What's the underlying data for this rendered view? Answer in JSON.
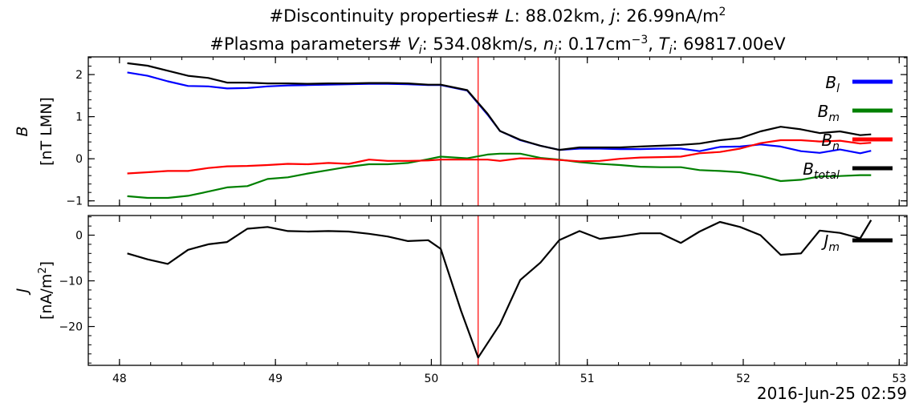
{
  "title": {
    "line1_prefix": "#Discontinuity properties# ",
    "line1_L_label": "L",
    "line1_L_value": ": 88.02km, ",
    "line1_j_label": "j",
    "line1_j_value": ": 26.99nA/m",
    "line1_j_sup": "2",
    "line2_prefix": "#Plasma parameters# ",
    "line2_V_label": "V",
    "line2_V_sub": "i",
    "line2_V_value": ": 534.08km/s, ",
    "line2_n_label": "n",
    "line2_n_sub": "i",
    "line2_n_value": ": 0.17cm",
    "line2_n_sup": "−3",
    "line2_sep": ", ",
    "line2_T_label": "T",
    "line2_T_sub": "i",
    "line2_T_value": ": 69817.00eV"
  },
  "footer": {
    "timestamp": "2016-Jun-25 02:59"
  },
  "colors": {
    "Bl": "#0000ff",
    "Bm": "#008000",
    "Bn": "#ff0000",
    "Btotal": "#000000",
    "J": "#000000",
    "center_line": "#ff0000",
    "boundary_line": "#000000"
  },
  "chart_data": [
    {
      "type": "line",
      "ylabel_sym": "B",
      "ylabel_unit": "[nT LMN]",
      "xlim": [
        47.8,
        53.05
      ],
      "ylim": [
        -1.12,
        2.42
      ],
      "x_ticks": [
        48,
        49,
        50,
        51,
        52,
        53
      ],
      "x_tick_labels": [
        "",
        "",
        "",
        "",
        "",
        ""
      ],
      "y_ticks": [
        -1,
        0,
        1,
        2
      ],
      "y_tick_labels": [
        "−1",
        "0",
        "1",
        "2"
      ],
      "vlines": [
        50.06,
        50.3,
        50.82
      ],
      "legend_position": "upper-right",
      "x": [
        48.05,
        48.18,
        48.31,
        48.44,
        48.57,
        48.69,
        48.82,
        48.95,
        49.08,
        49.21,
        49.34,
        49.47,
        49.6,
        49.72,
        49.85,
        49.98,
        50.06,
        50.23,
        50.36,
        50.44,
        50.57,
        50.7,
        50.82,
        50.95,
        51.08,
        51.21,
        51.34,
        51.47,
        51.6,
        51.72,
        51.85,
        51.98,
        52.11,
        52.24,
        52.37,
        52.49,
        52.62,
        52.75,
        52.82
      ],
      "series": [
        {
          "name": "B",
          "sub": "l",
          "color_key": "Bl",
          "values": [
            2.05,
            1.97,
            1.84,
            1.73,
            1.72,
            1.67,
            1.68,
            1.72,
            1.74,
            1.75,
            1.76,
            1.77,
            1.78,
            1.78,
            1.77,
            1.75,
            1.75,
            1.62,
            1.05,
            0.66,
            0.44,
            0.31,
            0.21,
            0.24,
            0.24,
            0.23,
            0.23,
            0.24,
            0.24,
            0.18,
            0.28,
            0.29,
            0.34,
            0.29,
            0.18,
            0.14,
            0.22,
            0.13,
            0.19
          ]
        },
        {
          "name": "B",
          "sub": "m",
          "color_key": "Bm",
          "values": [
            -0.89,
            -0.93,
            -0.93,
            -0.88,
            -0.78,
            -0.68,
            -0.65,
            -0.48,
            -0.44,
            -0.35,
            -0.27,
            -0.19,
            -0.13,
            -0.13,
            -0.1,
            -0.01,
            0.05,
            0.01,
            0.1,
            0.12,
            0.12,
            0.02,
            -0.02,
            -0.08,
            -0.12,
            -0.15,
            -0.19,
            -0.2,
            -0.2,
            -0.27,
            -0.29,
            -0.32,
            -0.41,
            -0.53,
            -0.5,
            -0.42,
            -0.41,
            -0.39,
            -0.39
          ]
        },
        {
          "name": "B",
          "sub": "n",
          "color_key": "Bn",
          "values": [
            -0.35,
            -0.32,
            -0.29,
            -0.29,
            -0.22,
            -0.18,
            -0.17,
            -0.15,
            -0.12,
            -0.13,
            -0.1,
            -0.12,
            -0.02,
            -0.05,
            -0.05,
            -0.04,
            -0.02,
            -0.02,
            -0.02,
            -0.05,
            0.01,
            0.0,
            -0.03,
            -0.06,
            -0.05,
            0.0,
            0.03,
            0.04,
            0.05,
            0.13,
            0.16,
            0.24,
            0.37,
            0.44,
            0.44,
            0.41,
            0.43,
            0.36,
            0.38
          ]
        },
        {
          "name": "B",
          "sub": "total",
          "color_key": "Btotal",
          "values": [
            2.27,
            2.21,
            2.09,
            1.97,
            1.92,
            1.81,
            1.81,
            1.79,
            1.79,
            1.78,
            1.79,
            1.79,
            1.8,
            1.8,
            1.79,
            1.76,
            1.76,
            1.63,
            1.07,
            0.66,
            0.45,
            0.31,
            0.21,
            0.27,
            0.27,
            0.27,
            0.29,
            0.31,
            0.33,
            0.36,
            0.44,
            0.49,
            0.65,
            0.76,
            0.7,
            0.61,
            0.65,
            0.56,
            0.58
          ]
        }
      ]
    },
    {
      "type": "line",
      "ylabel_sym": "J",
      "ylabel_unit_prefix": "[nA/m",
      "ylabel_unit_sup": "2",
      "ylabel_unit_suffix": "]",
      "xlim": [
        47.8,
        53.05
      ],
      "ylim": [
        -28.5,
        4.3
      ],
      "x_ticks": [
        48,
        49,
        50,
        51,
        52,
        53
      ],
      "x_tick_labels": [
        "48",
        "49",
        "50",
        "51",
        "52",
        "53"
      ],
      "y_ticks": [
        -20,
        -10,
        0
      ],
      "y_tick_labels": [
        "−20",
        "−10",
        "0"
      ],
      "vlines": [
        50.06,
        50.3,
        50.82
      ],
      "legend_position": "upper-right",
      "x": [
        48.05,
        48.18,
        48.31,
        48.44,
        48.57,
        48.69,
        48.82,
        48.95,
        49.08,
        49.21,
        49.34,
        49.47,
        49.6,
        49.72,
        49.85,
        49.98,
        50.06,
        50.19,
        50.3,
        50.44,
        50.57,
        50.7,
        50.82,
        50.95,
        51.08,
        51.21,
        51.34,
        51.47,
        51.6,
        51.72,
        51.85,
        51.98,
        52.11,
        52.24,
        52.37,
        52.49,
        52.62,
        52.75,
        52.82
      ],
      "series": [
        {
          "name": "J",
          "sub": "m",
          "color_key": "J",
          "values": [
            -4.0,
            -5.3,
            -6.3,
            -3.2,
            -2.0,
            -1.5,
            1.4,
            1.8,
            0.9,
            0.8,
            0.9,
            0.8,
            0.3,
            -0.3,
            -1.3,
            -1.1,
            -3.0,
            -16.5,
            -26.8,
            -19.5,
            -9.8,
            -6.0,
            -1.1,
            0.9,
            -0.8,
            -0.3,
            0.4,
            0.4,
            -1.7,
            0.8,
            2.9,
            1.8,
            0.0,
            -4.3,
            -4.0,
            1.0,
            0.5,
            -0.7,
            3.3
          ]
        }
      ]
    }
  ]
}
